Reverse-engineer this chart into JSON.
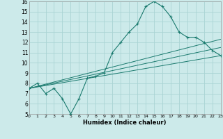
{
  "title": "",
  "xlabel": "Humidex (Indice chaleur)",
  "bg_color": "#cceaea",
  "grid_color": "#aad4d4",
  "line_color": "#1a7a6e",
  "xlim": [
    0,
    23
  ],
  "ylim": [
    5,
    16
  ],
  "xticks": [
    0,
    1,
    2,
    3,
    4,
    5,
    6,
    7,
    8,
    9,
    10,
    11,
    12,
    13,
    14,
    15,
    16,
    17,
    18,
    19,
    20,
    21,
    22,
    23
  ],
  "yticks": [
    5,
    6,
    7,
    8,
    9,
    10,
    11,
    12,
    13,
    14,
    15,
    16
  ],
  "main_curve_x": [
    0,
    1,
    2,
    3,
    4,
    5,
    6,
    7,
    8,
    9,
    10,
    11,
    12,
    13,
    14,
    15,
    16,
    17,
    18,
    19,
    20,
    21,
    22,
    23
  ],
  "main_curve_y": [
    7.5,
    8.0,
    7.0,
    7.5,
    6.5,
    5.0,
    6.5,
    8.5,
    8.7,
    9.0,
    11.0,
    12.0,
    13.0,
    13.8,
    15.5,
    16.0,
    15.5,
    14.5,
    13.0,
    12.5,
    12.5,
    12.0,
    11.2,
    10.7
  ],
  "line1_x": [
    0,
    23
  ],
  "line1_y": [
    7.5,
    10.7
  ],
  "line2_x": [
    0,
    23
  ],
  "line2_y": [
    7.5,
    11.5
  ],
  "line3_x": [
    0,
    23
  ],
  "line3_y": [
    7.5,
    12.3
  ]
}
